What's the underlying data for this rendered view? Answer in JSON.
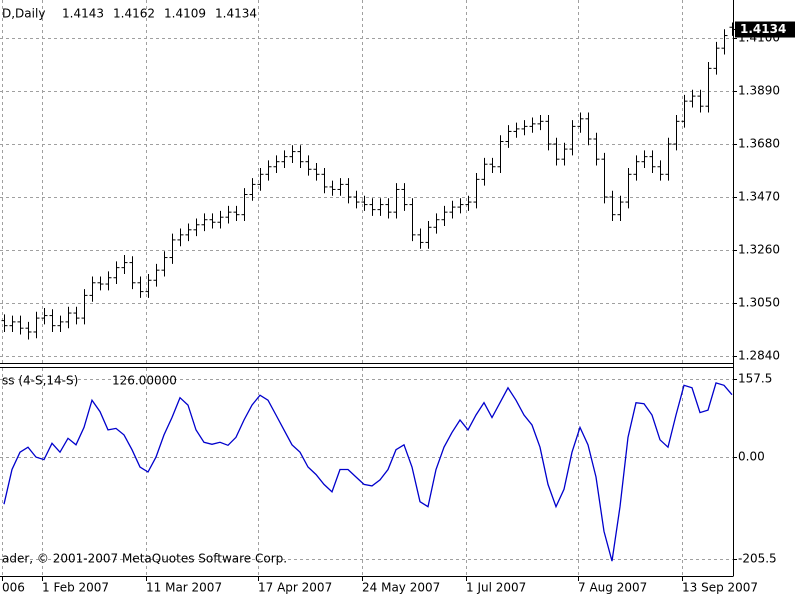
{
  "chart_data": [
    {
      "type": "ohlc",
      "title": "D,Daily",
      "color": "#000000",
      "grid": true,
      "categories": [
        "006",
        null,
        null,
        null,
        null,
        "1 Feb 2007",
        null,
        null,
        null,
        null,
        null,
        null,
        null,
        null,
        null,
        null,
        null,
        null,
        "11 Mar 2007",
        null,
        null,
        null,
        null,
        null,
        null,
        null,
        null,
        null,
        null,
        null,
        null,
        null,
        "17 Apr 2007",
        null,
        null,
        null,
        null,
        null,
        null,
        null,
        null,
        null,
        null,
        null,
        null,
        "24 May 2007",
        null,
        null,
        null,
        null,
        null,
        null,
        null,
        null,
        null,
        null,
        null,
        null,
        "1 Jul 2007",
        null,
        null,
        null,
        null,
        null,
        null,
        null,
        null,
        null,
        null,
        null,
        null,
        null,
        "7 Aug 2007",
        null,
        null,
        null,
        null,
        null,
        null,
        null,
        null,
        null,
        null,
        null,
        null,
        "13 Sep 2007",
        null,
        null,
        null,
        null,
        null,
        null
      ],
      "open": [
        1.298,
        1.296,
        1.2975,
        1.295,
        1.2935,
        1.299,
        1.3,
        1.296,
        1.2975,
        1.301,
        1.299,
        1.308,
        1.313,
        1.3125,
        1.315,
        1.319,
        1.321,
        1.313,
        1.3095,
        1.314,
        1.318,
        1.323,
        1.33,
        1.332,
        1.334,
        1.336,
        1.338,
        1.337,
        1.339,
        1.341,
        1.34,
        1.348,
        1.352,
        1.356,
        1.359,
        1.361,
        1.363,
        1.365,
        1.361,
        1.358,
        1.356,
        1.351,
        1.35,
        1.352,
        1.347,
        1.345,
        1.344,
        1.342,
        1.344,
        1.341,
        1.35,
        1.344,
        1.332,
        1.329,
        1.335,
        1.338,
        1.341,
        1.343,
        1.344,
        1.345,
        1.354,
        1.36,
        1.359,
        1.369,
        1.373,
        1.374,
        1.375,
        1.376,
        1.377,
        1.368,
        1.362,
        1.366,
        1.375,
        1.378,
        1.37,
        1.362,
        1.347,
        1.34,
        1.345,
        1.356,
        1.361,
        1.363,
        1.359,
        1.356,
        1.368,
        1.377,
        1.385,
        1.387,
        1.383,
        1.398,
        1.406,
        1.4143
      ],
      "high": [
        1.3005,
        1.3,
        1.3,
        1.2975,
        1.3015,
        1.303,
        1.3025,
        1.3,
        1.3035,
        1.3035,
        1.3105,
        1.3155,
        1.3155,
        1.3175,
        1.3215,
        1.324,
        1.3235,
        1.3155,
        1.3165,
        1.3205,
        1.3255,
        1.3325,
        1.3345,
        1.3365,
        1.3385,
        1.3405,
        1.3405,
        1.3415,
        1.3435,
        1.3435,
        1.3505,
        1.3545,
        1.3585,
        1.3615,
        1.3635,
        1.3655,
        1.3675,
        1.3675,
        1.3635,
        1.3605,
        1.3585,
        1.3535,
        1.3545,
        1.3545,
        1.3495,
        1.3475,
        1.3465,
        1.3465,
        1.3465,
        1.3525,
        1.3525,
        1.3465,
        1.3345,
        1.3375,
        1.3405,
        1.3435,
        1.3455,
        1.3465,
        1.3475,
        1.3565,
        1.3625,
        1.3625,
        1.3715,
        1.3755,
        1.3765,
        1.3775,
        1.3785,
        1.3795,
        1.3795,
        1.3705,
        1.3685,
        1.3775,
        1.3805,
        1.3805,
        1.3725,
        1.3645,
        1.3495,
        1.3475,
        1.3585,
        1.3635,
        1.3655,
        1.3655,
        1.3615,
        1.3705,
        1.3795,
        1.3875,
        1.3895,
        1.3895,
        1.4005,
        1.4085,
        1.4135,
        1.4162
      ],
      "low": [
        1.2935,
        1.2935,
        1.2925,
        1.2905,
        1.291,
        1.2965,
        1.2935,
        1.2935,
        1.295,
        1.2965,
        1.2965,
        1.3055,
        1.31,
        1.31,
        1.3125,
        1.3165,
        1.3105,
        1.307,
        1.307,
        1.3115,
        1.3155,
        1.3205,
        1.3275,
        1.3295,
        1.3315,
        1.3335,
        1.3345,
        1.3345,
        1.3365,
        1.3375,
        1.3375,
        1.3455,
        1.3495,
        1.3535,
        1.3565,
        1.3585,
        1.3605,
        1.3585,
        1.3555,
        1.3535,
        1.3485,
        1.3475,
        1.3475,
        1.3445,
        1.3425,
        1.3415,
        1.3395,
        1.3395,
        1.3385,
        1.3385,
        1.3415,
        1.3295,
        1.3265,
        1.3265,
        1.3325,
        1.3355,
        1.3385,
        1.3405,
        1.3415,
        1.3425,
        1.3515,
        1.3565,
        1.3565,
        1.3665,
        1.3705,
        1.3715,
        1.3725,
        1.3735,
        1.3655,
        1.3595,
        1.3595,
        1.3635,
        1.3725,
        1.3675,
        1.3595,
        1.3445,
        1.3375,
        1.3375,
        1.3425,
        1.3535,
        1.3585,
        1.3565,
        1.3535,
        1.3535,
        1.3655,
        1.3745,
        1.3825,
        1.3805,
        1.3805,
        1.3955,
        1.4035,
        1.4109
      ],
      "close": [
        1.296,
        1.2975,
        1.295,
        1.2935,
        1.299,
        1.3,
        1.296,
        1.2975,
        1.301,
        1.299,
        1.308,
        1.313,
        1.3125,
        1.315,
        1.319,
        1.321,
        1.313,
        1.3095,
        1.314,
        1.318,
        1.323,
        1.33,
        1.332,
        1.334,
        1.336,
        1.338,
        1.337,
        1.339,
        1.341,
        1.34,
        1.348,
        1.352,
        1.356,
        1.359,
        1.361,
        1.363,
        1.365,
        1.361,
        1.358,
        1.356,
        1.351,
        1.35,
        1.352,
        1.347,
        1.345,
        1.344,
        1.342,
        1.344,
        1.341,
        1.35,
        1.344,
        1.332,
        1.329,
        1.335,
        1.338,
        1.341,
        1.343,
        1.344,
        1.345,
        1.354,
        1.36,
        1.359,
        1.369,
        1.373,
        1.374,
        1.375,
        1.376,
        1.377,
        1.368,
        1.362,
        1.366,
        1.375,
        1.378,
        1.37,
        1.362,
        1.347,
        1.34,
        1.345,
        1.356,
        1.361,
        1.363,
        1.359,
        1.356,
        1.368,
        1.377,
        1.385,
        1.387,
        1.383,
        1.398,
        1.406,
        1.411,
        1.4134
      ],
      "ylim": [
        1.2812,
        1.4251
      ],
      "yticks": [
        {
          "value": 1.284,
          "label": "1.2840"
        },
        {
          "value": 1.305,
          "label": "1.3050"
        },
        {
          "value": 1.326,
          "label": "1.3260"
        },
        {
          "value": 1.347,
          "label": "1.3470"
        },
        {
          "value": 1.368,
          "label": "1.3680"
        },
        {
          "value": 1.389,
          "label": "1.3890"
        },
        {
          "value": 1.41,
          "label": "1.4100"
        }
      ]
    },
    {
      "type": "line",
      "title": "ss (4-S,14-S)",
      "current_label": "126.00000",
      "annotation": "ader, © 2001-2007 MetaQuotes Software Corp.",
      "color": "#0000cc",
      "grid": true,
      "values": [
        -95,
        -25,
        10,
        20,
        0,
        -5,
        28,
        10,
        38,
        25,
        60,
        115,
        92,
        55,
        58,
        45,
        15,
        -20,
        -30,
        0,
        45,
        80,
        120,
        105,
        55,
        30,
        26,
        30,
        24,
        40,
        75,
        105,
        125,
        115,
        85,
        55,
        25,
        10,
        -20,
        -35,
        -55,
        -70,
        -25,
        -25,
        -40,
        -55,
        -58,
        -46,
        -25,
        15,
        25,
        -20,
        -90,
        -100,
        -25,
        20,
        50,
        75,
        55,
        85,
        110,
        80,
        110,
        140,
        115,
        85,
        65,
        20,
        -55,
        -100,
        -65,
        10,
        60,
        25,
        -40,
        -150,
        -210,
        -100,
        40,
        110,
        108,
        85,
        35,
        20,
        85,
        145,
        140,
        90,
        95,
        150,
        145,
        126
      ],
      "ylim": [
        -240,
        180
      ],
      "yticks": [
        -205.5,
        {
          "value": 0,
          "label": "0.00"
        },
        157.5
      ]
    }
  ]
}
